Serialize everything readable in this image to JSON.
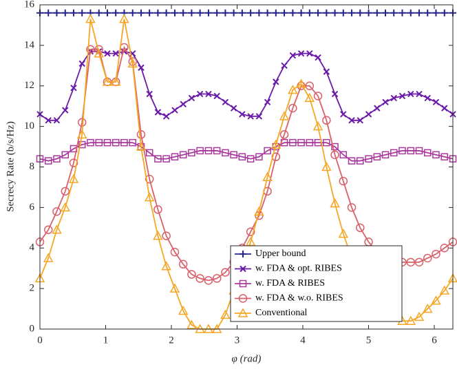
{
  "chart_data": {
    "type": "line",
    "xlabel": "φ (rad)",
    "ylabel": "Secrecy Rate (b/s/Hz)",
    "x": [
      0,
      0.128,
      0.256,
      0.385,
      0.513,
      0.641,
      0.769,
      0.898,
      1.026,
      1.154,
      1.282,
      1.411,
      1.539,
      1.667,
      1.795,
      1.923,
      2.052,
      2.18,
      2.308,
      2.436,
      2.565,
      2.693,
      2.821,
      2.949,
      3.077,
      3.206,
      3.334,
      3.462,
      3.59,
      3.718,
      3.847,
      3.975,
      4.103,
      4.231,
      4.36,
      4.488,
      4.616,
      4.744,
      4.872,
      5.001,
      5.129,
      5.257,
      5.385,
      5.513,
      5.642,
      5.77,
      5.898,
      6.026,
      6.155,
      6.283
    ],
    "xlim": [
      0,
      6.283
    ],
    "xticks": [
      0,
      1,
      2,
      3,
      4,
      5,
      6
    ],
    "ylim": [
      0,
      16
    ],
    "yticks": [
      0,
      2,
      4,
      6,
      8,
      10,
      12,
      14,
      16
    ],
    "legend": "lower right",
    "series": [
      {
        "name": "Upper bound",
        "color": "#24248a",
        "marker": "plus",
        "values": [
          15.6,
          15.6,
          15.6,
          15.6,
          15.6,
          15.6,
          15.6,
          15.6,
          15.6,
          15.6,
          15.6,
          15.6,
          15.6,
          15.6,
          15.6,
          15.6,
          15.6,
          15.6,
          15.6,
          15.6,
          15.6,
          15.6,
          15.6,
          15.6,
          15.6,
          15.6,
          15.6,
          15.6,
          15.6,
          15.6,
          15.6,
          15.6,
          15.6,
          15.6,
          15.6,
          15.6,
          15.6,
          15.6,
          15.6,
          15.6,
          15.6,
          15.6,
          15.6,
          15.6,
          15.6,
          15.6,
          15.6,
          15.6,
          15.6,
          15.6
        ]
      },
      {
        "name": "w. FDA & opt. RIBES",
        "color": "#6a1aa8",
        "marker": "cross",
        "values": [
          10.6,
          10.3,
          10.3,
          10.8,
          11.9,
          13.1,
          13.7,
          13.7,
          13.6,
          13.6,
          13.7,
          13.6,
          12.9,
          11.6,
          10.7,
          10.5,
          10.8,
          11.1,
          11.4,
          11.6,
          11.6,
          11.5,
          11.2,
          10.9,
          10.6,
          10.5,
          10.5,
          11.2,
          12.2,
          13.0,
          13.5,
          13.6,
          13.6,
          13.4,
          12.7,
          11.6,
          10.6,
          10.3,
          10.3,
          10.6,
          10.9,
          11.2,
          11.4,
          11.5,
          11.6,
          11.6,
          11.4,
          11.2,
          10.9,
          10.6
        ]
      },
      {
        "name": "w. FDA & RIBES",
        "color": "#a8389c",
        "marker": "square",
        "values": [
          8.4,
          8.3,
          8.4,
          8.6,
          8.9,
          9.1,
          9.2,
          9.2,
          9.2,
          9.2,
          9.2,
          9.2,
          9.0,
          8.7,
          8.4,
          8.4,
          8.5,
          8.6,
          8.7,
          8.8,
          8.8,
          8.8,
          8.7,
          8.6,
          8.5,
          8.4,
          8.5,
          8.8,
          9.0,
          9.2,
          9.2,
          9.2,
          9.2,
          9.2,
          9.2,
          9.0,
          8.6,
          8.3,
          8.3,
          8.4,
          8.5,
          8.6,
          8.7,
          8.8,
          8.8,
          8.8,
          8.7,
          8.6,
          8.5,
          8.4
        ]
      },
      {
        "name": "w. FDA & w.o. RIBES",
        "color": "#d9606a",
        "marker": "circle",
        "values": [
          4.3,
          4.9,
          5.8,
          6.8,
          8.2,
          10.2,
          13.8,
          13.8,
          12.2,
          12.2,
          13.9,
          13.2,
          9.6,
          7.4,
          5.9,
          4.6,
          3.8,
          3.2,
          2.7,
          2.5,
          2.4,
          2.5,
          2.8,
          3.3,
          4.0,
          4.8,
          5.6,
          6.8,
          8.5,
          9.6,
          10.9,
          12.0,
          12.0,
          11.5,
          10.3,
          8.6,
          7.3,
          6.0,
          5.0,
          4.3,
          3.8,
          3.6,
          3.4,
          3.3,
          3.3,
          3.3,
          3.5,
          3.7,
          4.0,
          4.3
        ]
      },
      {
        "name": "Conventional",
        "color": "#f5a623",
        "marker": "triangle",
        "values": [
          2.5,
          3.5,
          4.9,
          6.0,
          7.4,
          9.6,
          15.3,
          13.6,
          12.2,
          12.2,
          15.3,
          13.1,
          9.0,
          6.5,
          4.6,
          3.1,
          2.0,
          0.9,
          0.2,
          0,
          0,
          0,
          0.7,
          1.9,
          3.0,
          4.3,
          5.8,
          7.5,
          9.1,
          10.5,
          11.8,
          12.1,
          11.4,
          10.0,
          8.0,
          6.2,
          4.7,
          3.5,
          2.5,
          1.8,
          1.3,
          0.8,
          0.6,
          0.4,
          0.4,
          0.6,
          1.0,
          1.4,
          1.9,
          2.5
        ]
      }
    ]
  }
}
